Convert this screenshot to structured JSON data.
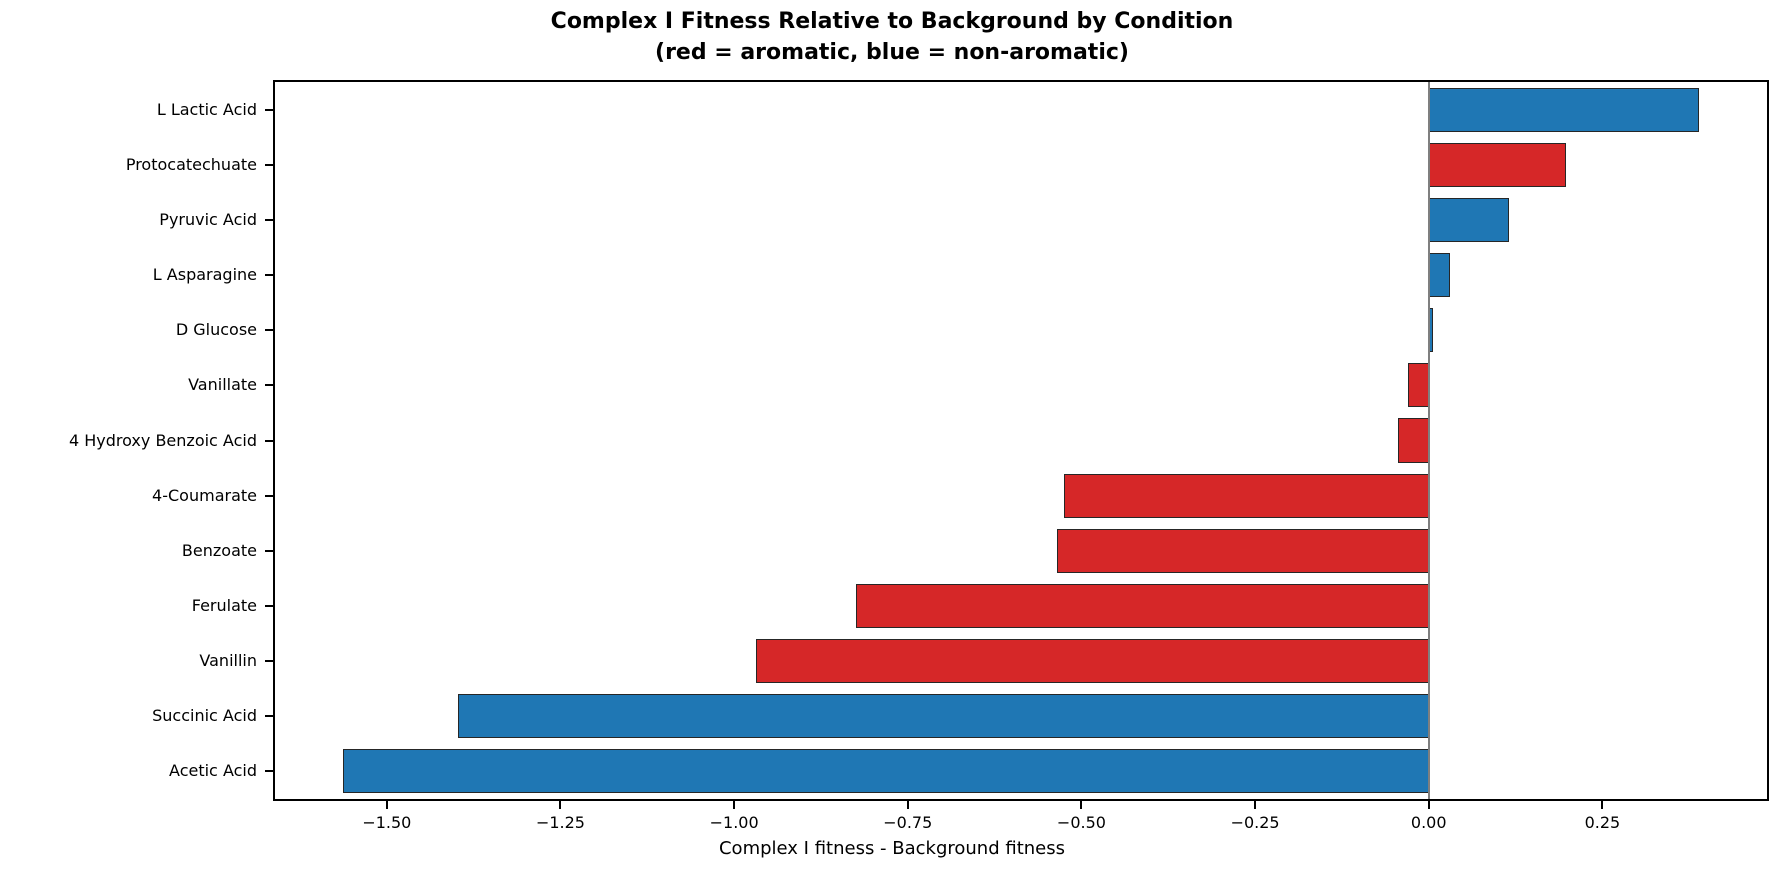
{
  "title": {
    "line1": "Complex I Fitness Relative to Background by Condition",
    "line2": "(red = aromatic, blue = non-aromatic)"
  },
  "chart_data": {
    "type": "bar",
    "orientation": "horizontal",
    "title": "Complex I Fitness Relative to Background by Condition (red = aromatic, blue = non-aromatic)",
    "xlabel": "Complex I fitness - Background fitness",
    "ylabel": "",
    "categories": [
      "L Lactic Acid",
      "Protocatechuate",
      "Pyruvic Acid",
      "L Asparagine",
      "D Glucose",
      "Vanillate",
      "4 Hydroxy Benzoic Acid",
      "4-Coumarate",
      "Benzoate",
      "Ferulate",
      "Vanillin",
      "Succinic Acid",
      "Acetic Acid"
    ],
    "values": [
      0.389,
      0.197,
      0.116,
      0.031,
      0.006,
      -0.03,
      -0.044,
      -0.525,
      -0.535,
      -0.824,
      -0.969,
      -1.398,
      -1.563
    ],
    "groups": [
      "non_aromatic",
      "aromatic",
      "non_aromatic",
      "non_aromatic",
      "non_aromatic",
      "aromatic",
      "aromatic",
      "aromatic",
      "aromatic",
      "aromatic",
      "aromatic",
      "non_aromatic",
      "non_aromatic"
    ],
    "colors": {
      "aromatic": "#d62728",
      "non_aromatic": "#1f77b4"
    },
    "bar_edge_color": "#262626",
    "zero_line": true,
    "zero_line_color": "#7f7f7f",
    "grid": false,
    "legend_position": "none",
    "xlim": [
      -1.661,
      0.487
    ],
    "xticks": [
      -1.5,
      -1.25,
      -1.0,
      -0.75,
      -0.5,
      -0.25,
      0.0,
      0.25
    ],
    "xtick_labels": [
      "−1.50",
      "−1.25",
      "−1.00",
      "−0.75",
      "−0.50",
      "−0.25",
      "0.00",
      "0.25"
    ]
  }
}
